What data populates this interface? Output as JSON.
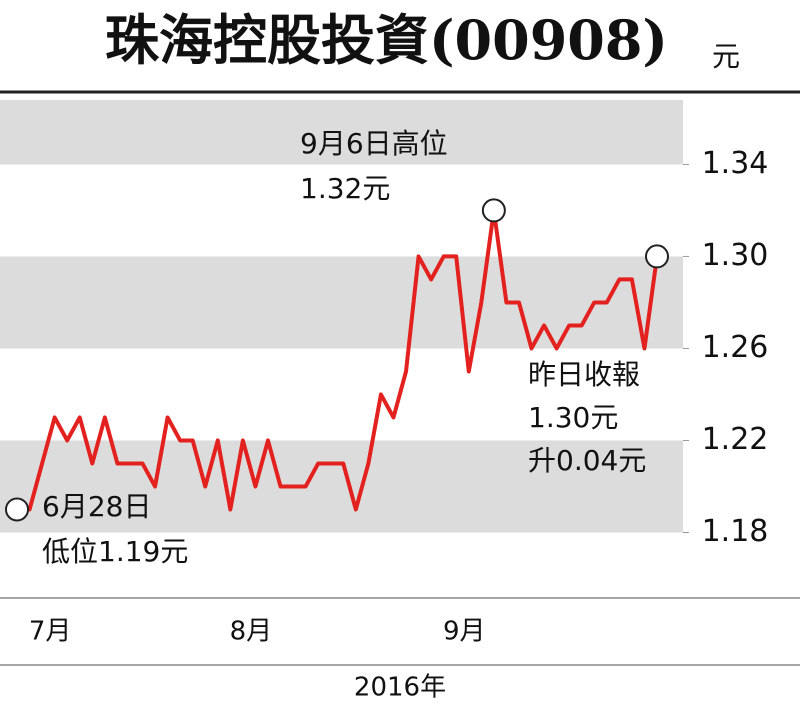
{
  "chart_data": {
    "type": "line",
    "title": "珠海控股投資(00908)",
    "unit": "元",
    "categories": [
      null,
      null,
      "7月",
      null,
      null,
      null,
      null,
      null,
      null,
      null,
      null,
      null,
      null,
      null,
      null,
      null,
      null,
      null,
      "8月",
      null,
      null,
      null,
      null,
      null,
      null,
      null,
      null,
      null,
      null,
      null,
      null,
      null,
      null,
      null,
      null,
      "9月",
      null,
      null,
      null,
      null,
      null,
      null,
      null,
      null,
      null,
      null,
      null,
      null,
      null,
      null,
      null,
      null
    ],
    "series": [
      {
        "color": "#e3211f",
        "values": [
          1.19,
          1.19,
          1.21,
          1.23,
          1.22,
          1.23,
          1.21,
          1.23,
          1.21,
          1.21,
          1.21,
          1.2,
          1.23,
          1.22,
          1.22,
          1.2,
          1.22,
          1.19,
          1.22,
          1.2,
          1.22,
          1.2,
          1.2,
          1.2,
          1.21,
          1.21,
          1.21,
          1.19,
          1.21,
          1.24,
          1.23,
          1.25,
          1.3,
          1.29,
          1.3,
          1.3,
          1.25,
          1.28,
          1.32,
          1.28,
          1.28,
          1.26,
          1.27,
          1.26,
          1.27,
          1.27,
          1.28,
          1.28,
          1.29,
          1.29,
          1.26,
          1.3
        ]
      }
    ],
    "ylim": [
      1.155,
      1.368
    ],
    "yticks": [
      {
        "value": 1.34,
        "label": "1.34"
      },
      {
        "value": 1.3,
        "label": "1.30"
      },
      {
        "value": 1.26,
        "label": "1.26"
      },
      {
        "value": 1.22,
        "label": "1.22"
      },
      {
        "value": 1.18,
        "label": "1.18"
      }
    ],
    "xlabel": "2016年",
    "annotations": [
      [
        "6月28日",
        "低位1.19元"
      ],
      [
        "9月6日高位",
        "1.32元"
      ],
      [
        "昨日收報",
        "1.30元",
        "升0.04元"
      ]
    ]
  }
}
